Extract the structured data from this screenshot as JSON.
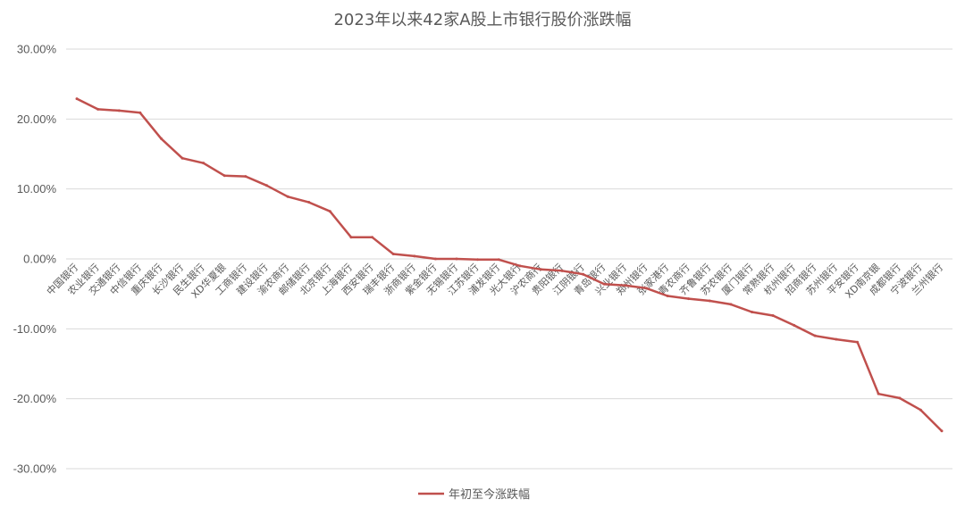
{
  "chart_data": {
    "type": "line",
    "title": "2023年以来42家A股上市银行股价涨跌幅",
    "xlabel": "",
    "ylabel": "",
    "ylim": [
      -30,
      30
    ],
    "yticks": [
      "30.00%",
      "20.00%",
      "10.00%",
      "0.00%",
      "-10.00%",
      "-20.00%",
      "-30.00%"
    ],
    "ytick_values": [
      30,
      20,
      10,
      0,
      -10,
      -20,
      -30
    ],
    "grid": true,
    "legend_position": "bottom",
    "line_color": "#c0504d",
    "categories": [
      "中国银行",
      "农业银行",
      "交通银行",
      "中信银行",
      "重庆银行",
      "长沙银行",
      "民生银行",
      "XD华夏银",
      "工商银行",
      "建设银行",
      "渝农商行",
      "邮储银行",
      "北京银行",
      "上海银行",
      "西安银行",
      "瑞丰银行",
      "浙商银行",
      "紫金银行",
      "无锡银行",
      "江苏银行",
      "浦发银行",
      "光大银行",
      "沪农商行",
      "贵阳银行",
      "江阴银行",
      "青岛银行",
      "兴业银行",
      "郑州银行",
      "张家港行",
      "青农商行",
      "齐鲁银行",
      "苏农银行",
      "厦门银行",
      "常熟银行",
      "杭州银行",
      "招商银行",
      "苏州银行",
      "平安银行",
      "XD南京银",
      "成都银行",
      "宁波银行",
      "兰州银行"
    ],
    "series": [
      {
        "name": "年初至今涨跌幅",
        "values": [
          22.9,
          21.4,
          21.2,
          20.9,
          17.2,
          14.4,
          13.7,
          11.9,
          11.8,
          10.5,
          8.9,
          8.1,
          6.8,
          3.1,
          3.1,
          0.7,
          0.4,
          0.0,
          0.0,
          -0.1,
          -0.1,
          -1.0,
          -1.5,
          -1.7,
          -2.2,
          -3.6,
          -3.8,
          -4.2,
          -5.3,
          -5.7,
          -6.0,
          -6.5,
          -7.6,
          -8.1,
          -9.5,
          -11.0,
          -11.5,
          -11.9,
          -19.3,
          -19.9,
          -21.6,
          -24.6
        ]
      }
    ]
  }
}
